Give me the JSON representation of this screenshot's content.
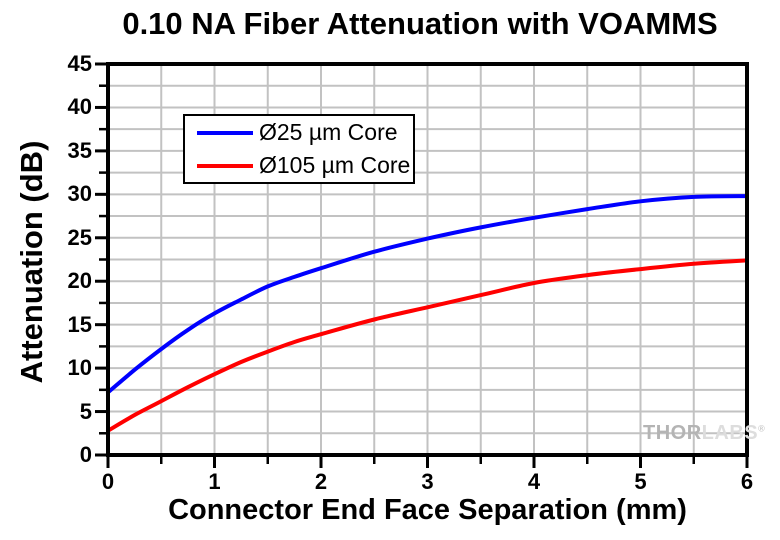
{
  "chart_data": {
    "type": "line",
    "title": "0.10 NA Fiber Attenuation with VOAMMS",
    "xlabel": "Connector End Face Separation (mm)",
    "ylabel": "Attenuation (dB)",
    "xlim": [
      0,
      6
    ],
    "ylim": [
      0,
      45
    ],
    "x_ticks": [
      0,
      1,
      2,
      3,
      4,
      5,
      6
    ],
    "y_ticks": [
      0,
      5,
      10,
      15,
      20,
      25,
      30,
      35,
      40,
      45
    ],
    "x_minor_step": 0.5,
    "y_minor_step": 2.5,
    "grid": true,
    "grid_color": "#c2c2c2",
    "legend_position": "upper-left",
    "x": [
      0,
      0.25,
      0.5,
      0.75,
      1,
      1.25,
      1.5,
      1.75,
      2,
      2.5,
      3,
      3.5,
      4,
      4.5,
      5,
      5.5,
      6
    ],
    "series": [
      {
        "name": "Ø25 µm Core",
        "color": "#0000ff",
        "values": [
          7.2,
          9.8,
          12.2,
          14.4,
          16.3,
          17.9,
          19.4,
          20.5,
          21.5,
          23.4,
          24.9,
          26.2,
          27.3,
          28.3,
          29.2,
          29.7,
          29.8
        ]
      },
      {
        "name": "Ø105 µm Core",
        "color": "#ff0000",
        "values": [
          2.8,
          4.6,
          6.2,
          7.8,
          9.3,
          10.7,
          11.9,
          13.0,
          13.9,
          15.6,
          17.0,
          18.4,
          19.8,
          20.7,
          21.4,
          22.0,
          22.4
        ]
      }
    ]
  },
  "watermark": {
    "part1": "THOR",
    "part2": "LABS",
    "reg": "®"
  }
}
